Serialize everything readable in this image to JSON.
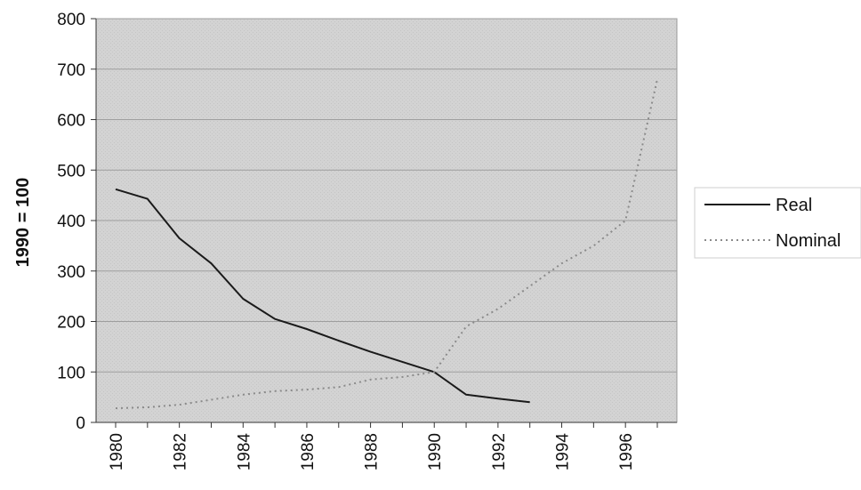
{
  "chart_data": {
    "type": "line",
    "title": "",
    "xlabel": "",
    "ylabel": "1990 = 100",
    "xlim": [
      1980,
      1997
    ],
    "ylim": [
      0,
      800
    ],
    "x_ticks": [
      "1980",
      "1982",
      "1984",
      "1986",
      "1988",
      "1990",
      "1992",
      "1994",
      "1996"
    ],
    "y_ticks": [
      "0",
      "100",
      "200",
      "300",
      "400",
      "500",
      "600",
      "700",
      "800"
    ],
    "grid": true,
    "legend_position": "right",
    "series": [
      {
        "name": "Real",
        "color": "#1a1a1a",
        "style": "solid",
        "x": [
          1980,
          1981,
          1982,
          1983,
          1984,
          1985,
          1986,
          1987,
          1988,
          1989,
          1990,
          1991,
          1992,
          1993
        ],
        "y": [
          462,
          443,
          365,
          315,
          245,
          205,
          185,
          162,
          140,
          120,
          100,
          55,
          47,
          40
        ]
      },
      {
        "name": "Nominal",
        "color": "#8a8a8a",
        "style": "dotted",
        "x": [
          1980,
          1981,
          1982,
          1983,
          1984,
          1985,
          1986,
          1987,
          1988,
          1989,
          1990,
          1991,
          1992,
          1993,
          1994,
          1995,
          1996,
          1997
        ],
        "y": [
          28,
          30,
          35,
          45,
          55,
          62,
          65,
          70,
          85,
          90,
          100,
          190,
          225,
          270,
          315,
          350,
          400,
          680
        ]
      }
    ]
  }
}
